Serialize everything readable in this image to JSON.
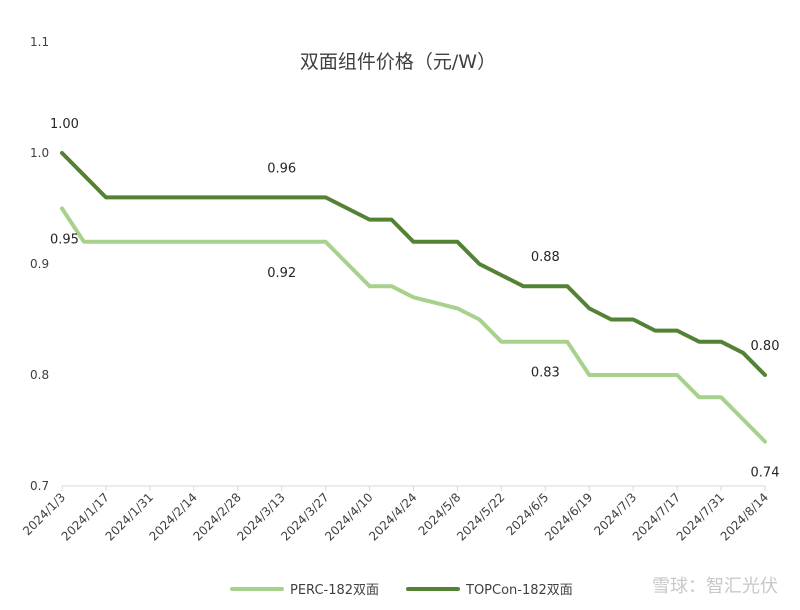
{
  "chart_data": {
    "type": "line",
    "title": "双面组件价格（元/W）",
    "xlabel": "",
    "ylabel": "",
    "ylim": [
      0.7,
      1.1
    ],
    "yticks": [
      "0.7",
      "0.8",
      "0.9",
      "1.0",
      "1.1"
    ],
    "grid": false,
    "legend_position": "bottom",
    "x_tick_labels": [
      "2024/1/3",
      "2024/1/17",
      "2024/1/31",
      "2024/2/14",
      "2024/2/28",
      "2024/3/13",
      "2024/3/27",
      "2024/4/10",
      "2024/4/24",
      "2024/5/8",
      "2024/5/22",
      "2024/6/5",
      "2024/6/19",
      "2024/7/3",
      "2024/7/17",
      "2024/7/31",
      "2024/8/14"
    ],
    "x": [
      "2024/1/3",
      "2024/1/10",
      "2024/1/17",
      "2024/1/24",
      "2024/1/31",
      "2024/2/7",
      "2024/2/14",
      "2024/2/21",
      "2024/2/28",
      "2024/3/6",
      "2024/3/13",
      "2024/3/20",
      "2024/3/27",
      "2024/4/3",
      "2024/4/10",
      "2024/4/17",
      "2024/4/24",
      "2024/5/1",
      "2024/5/8",
      "2024/5/15",
      "2024/5/22",
      "2024/5/29",
      "2024/6/5",
      "2024/6/12",
      "2024/6/19",
      "2024/6/26",
      "2024/7/3",
      "2024/7/10",
      "2024/7/17",
      "2024/7/24",
      "2024/7/31",
      "2024/8/7",
      "2024/8/14"
    ],
    "series": [
      {
        "name": "PERC-182双面",
        "color": "#a9d18e",
        "values": [
          0.95,
          0.92,
          0.92,
          0.92,
          0.92,
          0.92,
          0.92,
          0.92,
          0.92,
          0.92,
          0.92,
          0.92,
          0.92,
          0.9,
          0.88,
          0.88,
          0.87,
          0.865,
          0.86,
          0.85,
          0.83,
          0.83,
          0.83,
          0.83,
          0.8,
          0.8,
          0.8,
          0.8,
          0.8,
          0.78,
          0.78,
          0.76,
          0.74
        ]
      },
      {
        "name": "TOPCon-182双面",
        "color": "#548235",
        "values": [
          1.0,
          0.98,
          0.96,
          0.96,
          0.96,
          0.96,
          0.96,
          0.96,
          0.96,
          0.96,
          0.96,
          0.96,
          0.96,
          0.95,
          0.94,
          0.94,
          0.92,
          0.92,
          0.92,
          0.9,
          0.89,
          0.88,
          0.88,
          0.88,
          0.86,
          0.85,
          0.85,
          0.84,
          0.84,
          0.83,
          0.83,
          0.82,
          0.8
        ]
      }
    ],
    "data_labels": [
      {
        "series": 1,
        "index": 0,
        "text": "1.00",
        "pos": "above"
      },
      {
        "series": 1,
        "index": 10,
        "text": "0.96",
        "pos": "above"
      },
      {
        "series": 1,
        "index": 22,
        "text": "0.88",
        "pos": "above"
      },
      {
        "series": 1,
        "index": 32,
        "text": "0.80",
        "pos": "above"
      },
      {
        "series": 0,
        "index": 0,
        "text": "0.95",
        "pos": "below"
      },
      {
        "series": 0,
        "index": 10,
        "text": "0.92",
        "pos": "below"
      },
      {
        "series": 0,
        "index": 22,
        "text": "0.83",
        "pos": "below"
      },
      {
        "series": 0,
        "index": 32,
        "text": "0.74",
        "pos": "below"
      }
    ]
  },
  "watermark": "雪球：智汇光伏"
}
